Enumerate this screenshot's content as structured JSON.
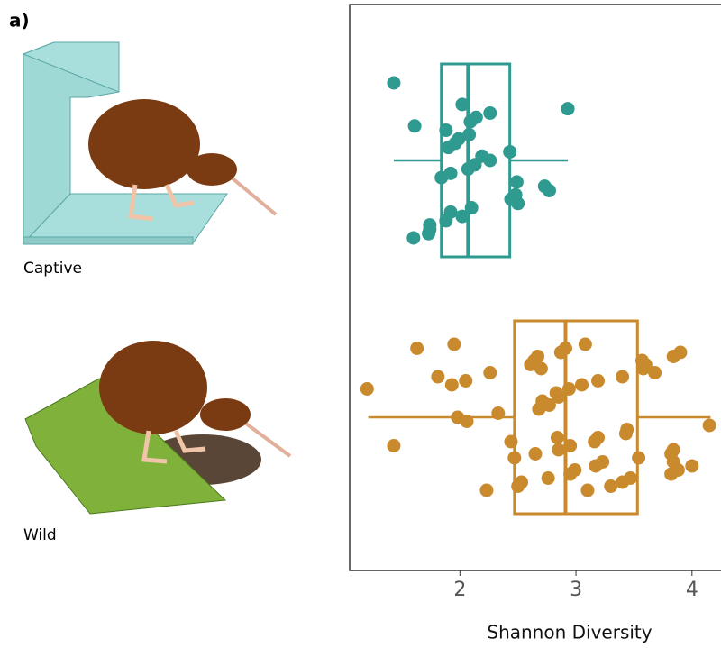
{
  "panel_label": "a)",
  "chart_data": {
    "type": "box",
    "orientation": "horizontal",
    "xlabel": "Shannon Diversity",
    "categories": [
      "Captive",
      "Wild"
    ],
    "xlim": [
      1.05,
      4.25
    ],
    "xticks": [
      2,
      3,
      4
    ],
    "series": [
      {
        "name": "Captive",
        "color": "#2f9a90",
        "whisker_low": 1.43,
        "q1": 1.84,
        "median": 2.07,
        "q3": 2.43,
        "whisker_high": 2.93,
        "points": [
          1.43,
          1.6,
          1.73,
          1.74,
          1.74,
          1.88,
          2.02,
          1.92,
          2.1,
          2.5,
          2.44,
          2.48,
          2.77,
          2.73,
          2.49,
          1.84,
          1.92,
          2.07,
          2.13,
          2.26,
          2.19,
          2.43,
          1.9,
          1.96,
          1.99,
          2.08,
          1.88,
          1.61,
          2.09,
          2.14,
          2.26,
          2.93,
          2.02
        ]
      },
      {
        "name": "Wild",
        "color": "#c98a2e",
        "whisker_low": 1.21,
        "q1": 2.47,
        "median": 2.91,
        "q3": 3.53,
        "whisker_high": 4.16,
        "points": [
          1.2,
          1.93,
          2.05,
          1.81,
          2.26,
          2.7,
          2.61,
          2.64,
          2.67,
          2.87,
          2.91,
          3.08,
          3.1,
          3.3,
          3.4,
          3.47,
          3.82,
          3.88,
          4.0,
          3.84,
          2.47,
          2.65,
          2.85,
          2.95,
          3.16,
          3.19,
          3.43,
          3.44,
          4.15,
          2.06,
          1.98,
          2.33,
          2.68,
          2.77,
          2.71,
          2.85,
          2.83,
          2.94,
          3.05,
          3.19,
          3.4,
          3.68,
          3.58,
          3.6,
          3.57,
          3.84,
          3.9,
          1.63,
          1.95,
          2.23,
          2.5,
          2.53,
          2.76,
          2.95,
          2.99,
          3.17,
          3.23,
          3.54,
          3.82,
          3.84,
          1.43,
          2.44,
          2.84
        ]
      }
    ]
  }
}
